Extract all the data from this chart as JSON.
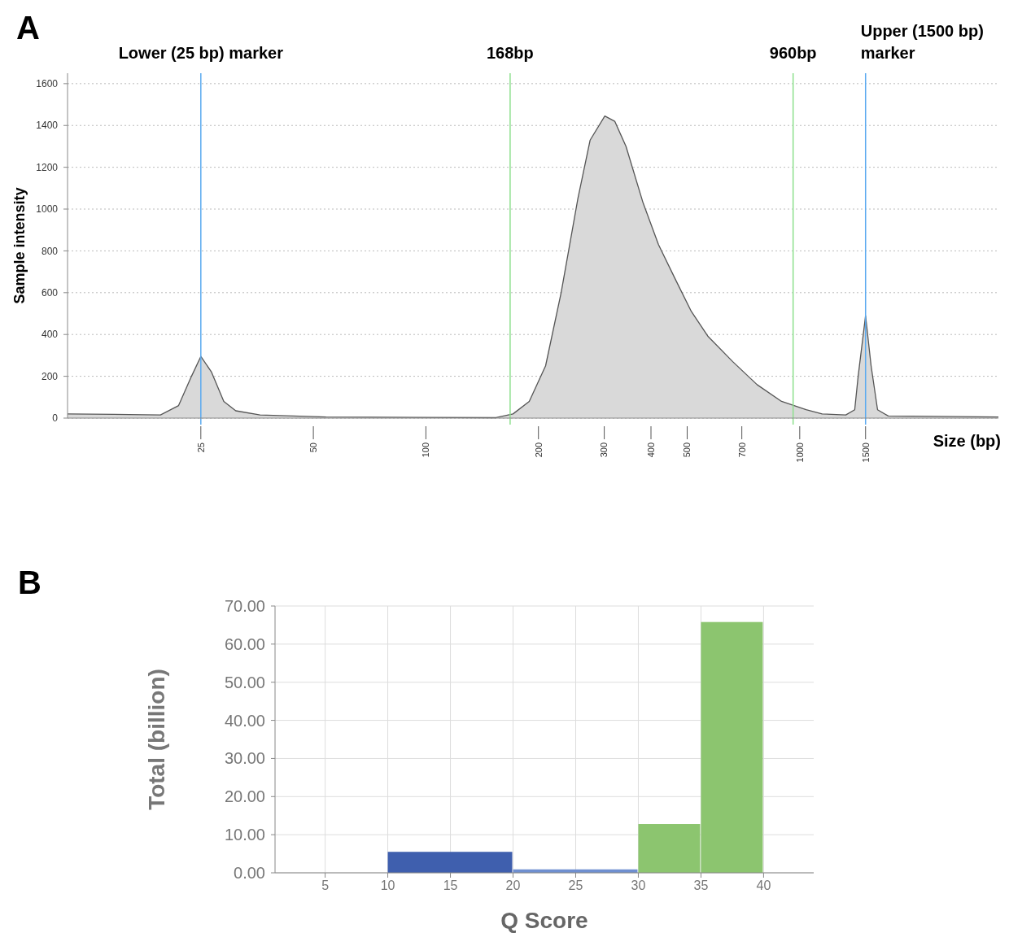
{
  "chart_data": [
    {
      "type": "area",
      "title": "A",
      "xlabel": "Size (bp)",
      "ylabel": "Sample intensity",
      "x": [
        11,
        14.6,
        19.5,
        21.8,
        23.6,
        25,
        26.7,
        28.8,
        31,
        36,
        54,
        154,
        171,
        189,
        209,
        230,
        255,
        275,
        301,
        320,
        343,
        381,
        419,
        466,
        513,
        569,
        662,
        769,
        894,
        1040,
        1148,
        1328,
        1403,
        1433,
        1500,
        1552,
        1615,
        1725,
        3400
      ],
      "values": [
        20,
        18,
        15,
        60,
        200,
        295,
        220,
        80,
        35,
        15,
        5,
        2,
        20,
        80,
        250,
        600,
        1050,
        1330,
        1445,
        1420,
        1300,
        1030,
        830,
        660,
        510,
        390,
        270,
        160,
        80,
        40,
        20,
        15,
        40,
        200,
        490,
        250,
        40,
        10,
        5
      ],
      "color": "#d9d9d9",
      "log": "x",
      "xlim": [
        11,
        3400
      ],
      "ylim": [
        0,
        1650
      ],
      "xticks": [
        25,
        50,
        100,
        200,
        300,
        400,
        500,
        700,
        1000,
        1500
      ],
      "yticks": [
        0,
        200,
        400,
        600,
        800,
        1000,
        1200,
        1400,
        1600
      ],
      "grid": "y",
      "ref_lines": [
        {
          "axis": "x",
          "value": 25,
          "label": "Lower (25 bp) marker",
          "color": "#5aaaf0"
        },
        {
          "axis": "x",
          "value": 168,
          "label": "168bp",
          "color": "#8ee08e"
        },
        {
          "axis": "x",
          "value": 960,
          "label": "960bp",
          "color": "#8ee08e"
        },
        {
          "axis": "x",
          "value": 1500,
          "label": "Upper (1500 bp) marker",
          "color": "#5aaaf0"
        }
      ]
    },
    {
      "type": "histogram",
      "title": "B",
      "xlabel": "Q Score",
      "ylabel": "Total (billion)",
      "bins": [
        10,
        20,
        30,
        35,
        40
      ],
      "values": [
        5.5,
        0.9,
        12.8,
        65.8
      ],
      "colors": [
        "#3f5fae",
        "#6f8fd0",
        "#8cc56f",
        "#8cc56f"
      ],
      "xlim": [
        1,
        44
      ],
      "ylim": [
        0,
        70
      ],
      "xticks": [
        5,
        10,
        15,
        20,
        25,
        30,
        35,
        40
      ],
      "yticks": [
        {
          "value": 0,
          "label": "0.00"
        },
        {
          "value": 10,
          "label": "10.00"
        },
        {
          "value": 20,
          "label": "20.00"
        },
        {
          "value": 30,
          "label": "30.00"
        },
        {
          "value": 40,
          "label": "40.00"
        },
        {
          "value": 50,
          "label": "50.00"
        },
        {
          "value": 60,
          "label": "60.00"
        },
        {
          "value": 70,
          "label": "70.00"
        }
      ],
      "grid": true
    }
  ]
}
